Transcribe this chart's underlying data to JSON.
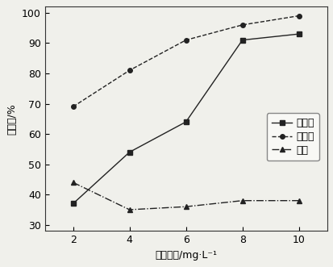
{
  "x": [
    2,
    4,
    6,
    8,
    10
  ],
  "magnetite": [
    37,
    54,
    64,
    91,
    93
  ],
  "hematite": [
    69,
    81,
    91,
    96,
    99
  ],
  "quartz": [
    44,
    35,
    36,
    38,
    38
  ],
  "xlabel": "淀粉用量/mg·L⁻¹",
  "ylabel": "回收率/%",
  "legend_magnetite": "磁铁矿",
  "legend_hematite": "赤铁矿",
  "legend_quartz": "石英",
  "xlim": [
    1,
    11
  ],
  "ylim": [
    28,
    102
  ],
  "yticks": [
    30,
    40,
    50,
    60,
    70,
    80,
    90,
    100
  ],
  "xticks": [
    2,
    4,
    6,
    8,
    10
  ],
  "line_color": "#222222",
  "bg_color": "#f0f0eb",
  "label_fontsize": 9,
  "tick_fontsize": 9,
  "legend_fontsize": 9
}
